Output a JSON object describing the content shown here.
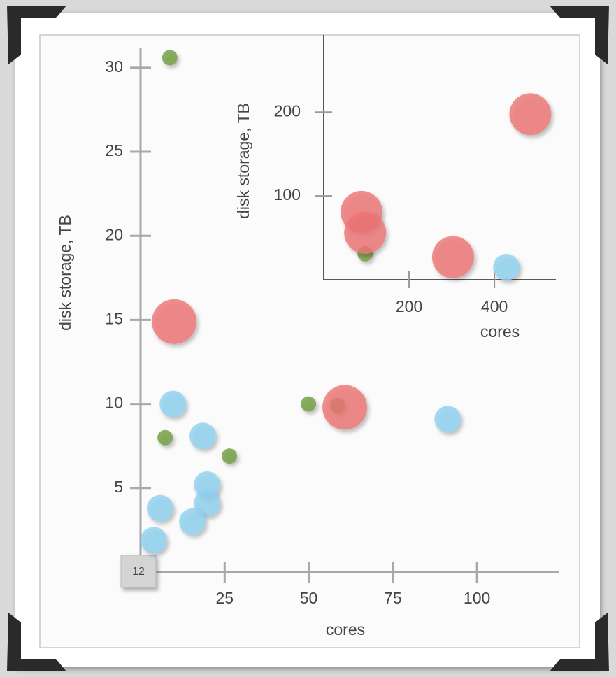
{
  "chart_data": [
    {
      "type": "scatter",
      "xlabel": "cores",
      "ylabel": "disk storage, TB",
      "annotation": "12",
      "xlim": [
        0,
        124.5
      ],
      "ylim": [
        0,
        31.2
      ],
      "xticks": [
        25,
        50,
        75,
        100
      ],
      "yticks": [
        5,
        10,
        15,
        20,
        25,
        30
      ],
      "series": [
        {
          "color": "#6f9d3f",
          "x": [
            8.7,
            7.3,
            26.4,
            49.9,
            58.6
          ],
          "values": [
            30.6,
            8.0,
            6.9,
            10.0,
            9.9
          ]
        },
        {
          "color": "#8fd1f0",
          "x": [
            9.6,
            18.5,
            19.8,
            19.8,
            5.8,
            15.4,
            3.9,
            91.3
          ],
          "values": [
            10.0,
            8.1,
            5.2,
            4.1,
            3.8,
            3.0,
            1.9,
            9.1
          ]
        },
        {
          "color": "#ee7474",
          "x": [
            10.0,
            60.7
          ],
          "values": [
            14.9,
            9.8
          ]
        }
      ]
    },
    {
      "type": "scatter",
      "xlabel": "cores",
      "ylabel": "disk storage, TB",
      "xlim": [
        0,
        544
      ],
      "ylim": [
        0,
        292
      ],
      "xticks": [
        200,
        400
      ],
      "yticks": [
        100,
        200
      ],
      "series": [
        {
          "color": "#6f9d3f",
          "x": [
            97
          ],
          "values": [
            31
          ]
        },
        {
          "color": "#8fd1f0",
          "x": [
            428
          ],
          "values": [
            15
          ]
        },
        {
          "color": "#ee7474",
          "x": [
            484,
            88.5,
            97,
            303
          ],
          "values": [
            197.5,
            81,
            56,
            27
          ]
        }
      ]
    }
  ]
}
